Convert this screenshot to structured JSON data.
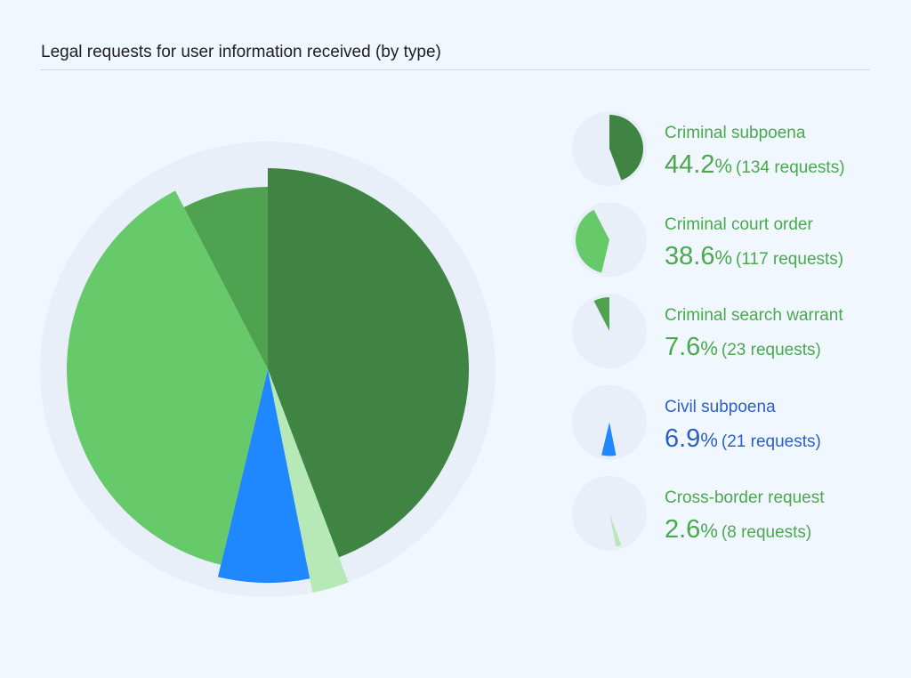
{
  "chart_data": {
    "type": "pie",
    "title": "Legal requests for user information received (by type)",
    "slices": [
      {
        "label": "Criminal subpoena",
        "percent": 44.2,
        "percent_text": "44.2",
        "count_text": "(134 requests)",
        "count": 134,
        "color": "#3f8442",
        "text_color": "#4aa84e"
      },
      {
        "label": "Cross-border request",
        "percent": 2.6,
        "percent_text": "2.6",
        "count_text": "(8 requests)",
        "count": 8,
        "color": "#b6e8b8",
        "text_color": "#4aa84e"
      },
      {
        "label": "Civil subpoena",
        "percent": 6.9,
        "percent_text": "6.9",
        "count_text": "(21 requests)",
        "count": 21,
        "color": "#1f88ff",
        "text_color": "#2c60c4"
      },
      {
        "label": "Criminal court order",
        "percent": 38.6,
        "percent_text": "38.6",
        "count_text": "(117 requests)",
        "count": 117,
        "color": "#66c96a",
        "text_color": "#4aa84e"
      },
      {
        "label": "Criminal search warrant",
        "percent": 7.6,
        "percent_text": "7.6",
        "count_text": "(23 requests)",
        "count": 23,
        "color": "#4fa350",
        "text_color": "#4aa84e"
      }
    ],
    "legend_order": [
      0,
      3,
      4,
      2,
      1
    ],
    "percent_sign": "%",
    "legend_placement": "right"
  }
}
